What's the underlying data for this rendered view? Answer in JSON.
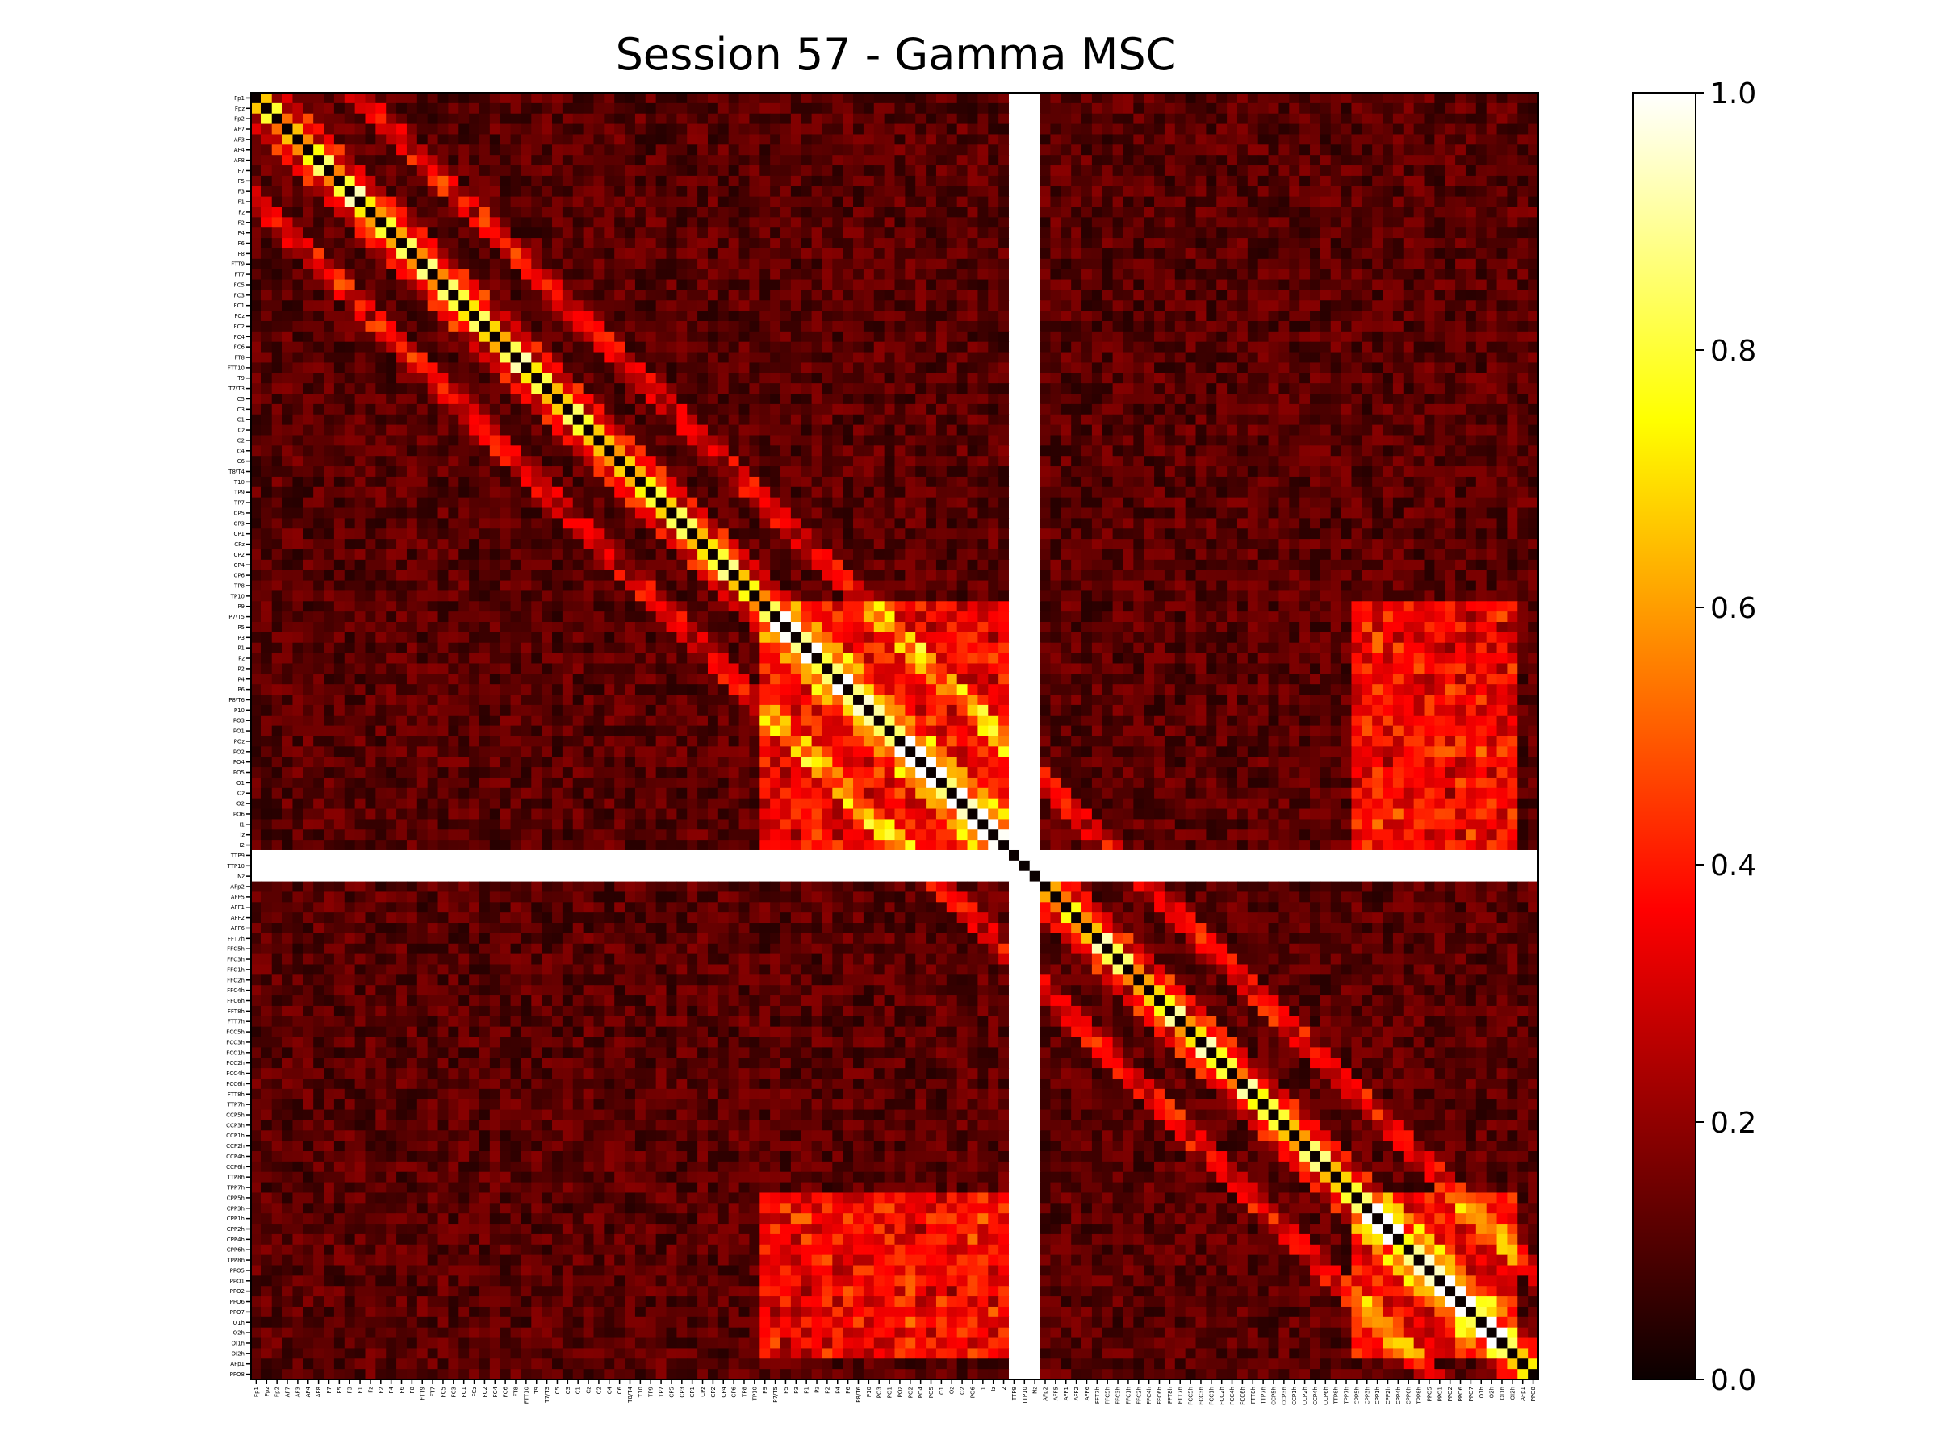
{
  "chart_data": {
    "type": "heatmap",
    "title": "Session 57 - Gamma MSC",
    "colormap": "hot",
    "value_range": [
      0,
      1
    ],
    "colorbar_ticks": [
      "0.0",
      "0.2",
      "0.4",
      "0.6",
      "0.8",
      "1.0"
    ],
    "diagonal_value": 0,
    "flat_channels": [
      "TTP9",
      "TTP10",
      "Nz"
    ],
    "channels": [
      "Fp1",
      "Fpz",
      "Fp2",
      "AF7",
      "AF3",
      "AF4",
      "AF8",
      "F7",
      "F5",
      "F3",
      "F1",
      "Fz",
      "F2",
      "F4",
      "F6",
      "F8",
      "FTT9",
      "FT7",
      "FC5",
      "FC3",
      "FC1",
      "FCz",
      "FC2",
      "FC4",
      "FC6",
      "FT8",
      "FTT10",
      "T9",
      "T7/T3",
      "C5",
      "C3",
      "C1",
      "Cz",
      "C2",
      "C4",
      "C6",
      "T8/T4",
      "T10",
      "TP9",
      "TP7",
      "CP5",
      "CP3",
      "CP1",
      "CPz",
      "CP2",
      "CP4",
      "CP6",
      "TP8",
      "TP10",
      "P9",
      "P7/T5",
      "P5",
      "P3",
      "P1",
      "Pz",
      "P2",
      "P4",
      "P6",
      "P8/T6",
      "P10",
      "PO3",
      "PO1",
      "POz",
      "PO2",
      "PO4",
      "PO5",
      "O1",
      "Oz",
      "O2",
      "PO6",
      "I1",
      "Iz",
      "I2",
      "TTP9",
      "TTP10",
      "Nz",
      "AFp2",
      "AFF5",
      "AFF1",
      "AFF2",
      "AFF6",
      "FFT7h",
      "FFC5h",
      "FFC3h",
      "FFC1h",
      "FFC2h",
      "FFC4h",
      "FFC6h",
      "FFT8h",
      "FTT7h",
      "FCC5h",
      "FCC3h",
      "FCC1h",
      "FCC2h",
      "FCC4h",
      "FCC6h",
      "FTT8h",
      "TTP7h",
      "CCP5h",
      "CCP3h",
      "CCP1h",
      "CCP2h",
      "CCP4h",
      "CCP6h",
      "TTP8h",
      "TPP7h",
      "CPP5h",
      "CPP3h",
      "CPP1h",
      "CPP2h",
      "CPP4h",
      "CPP6h",
      "TPP8h",
      "PPO5",
      "PPO1",
      "PPO2",
      "PPO6",
      "PPO7",
      "O1h",
      "O2h",
      "OI1h",
      "OI2h",
      "AFp1",
      "PPO8"
    ]
  }
}
